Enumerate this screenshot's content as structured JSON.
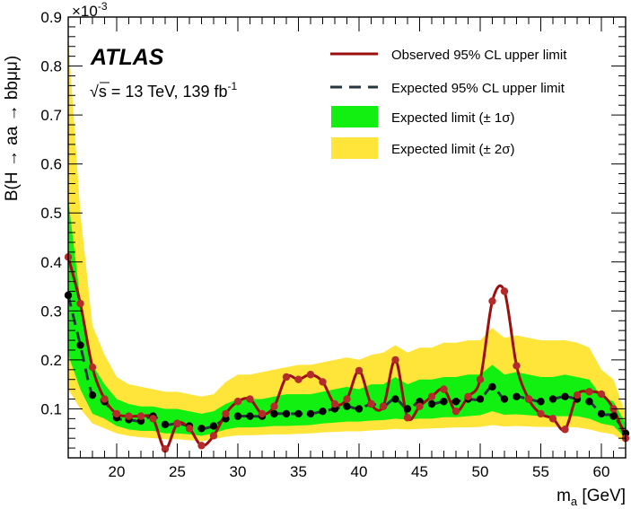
{
  "chart_data": {
    "type": "line",
    "ylabel": "B(H → aa → bbμμ)",
    "xlabel": "m_a [GeV]",
    "xlabel_main": "m",
    "xlabel_sub": "a",
    "xlabel_unit": " [GeV]",
    "y_exponent": "×10",
    "y_exponent_power": "-3",
    "xlim": [
      16,
      62
    ],
    "ylim": [
      0,
      0.9
    ],
    "x_ticks": [
      20,
      25,
      30,
      35,
      40,
      45,
      50,
      55,
      60
    ],
    "y_ticks": [
      0.1,
      0.2,
      0.3,
      0.4,
      0.5,
      0.6,
      0.7,
      0.8,
      0.9
    ],
    "experiment": "ATLAS",
    "energy_label": "s = 13 TeV, 139 fb",
    "energy_sqrt_prefix": "√",
    "lumi_power": "-1",
    "legend": {
      "placement": "top-right",
      "observed": "Observed 95% CL upper limit",
      "expected": "Expected 95% CL upper limit",
      "band1": "Expected limit (± 1σ)",
      "band2": "Expected limit (± 2σ)"
    },
    "colors": {
      "observed": "#9b0f0f",
      "expected": "#25363f",
      "band1": "#12f012",
      "band2": "#ffe53a"
    },
    "x": [
      16,
      17,
      18,
      19,
      20,
      21,
      22,
      23,
      24,
      25,
      26,
      27,
      28,
      29,
      30,
      31,
      32,
      33,
      34,
      35,
      36,
      37,
      38,
      39,
      40,
      41,
      42,
      43,
      44,
      45,
      46,
      47,
      48,
      49,
      50,
      51,
      52,
      53,
      54,
      55,
      56,
      57,
      58,
      59,
      60,
      61,
      62
    ],
    "observed": [
      0.41,
      0.315,
      0.185,
      0.12,
      0.09,
      0.085,
      0.085,
      0.08,
      0.018,
      0.07,
      0.06,
      0.025,
      0.045,
      0.09,
      0.115,
      0.12,
      0.09,
      0.105,
      0.165,
      0.16,
      0.17,
      0.155,
      0.11,
      0.12,
      0.178,
      0.11,
      0.105,
      0.2,
      0.082,
      0.105,
      0.125,
      0.14,
      0.095,
      0.125,
      0.16,
      0.32,
      0.34,
      0.188,
      0.12,
      0.09,
      0.08,
      0.058,
      0.128,
      0.135,
      0.13,
      0.1,
      0.04
    ],
    "expected": [
      0.332,
      0.23,
      0.128,
      0.115,
      0.082,
      0.078,
      0.075,
      0.085,
      0.068,
      0.07,
      0.065,
      0.06,
      0.065,
      0.08,
      0.085,
      0.085,
      0.085,
      0.09,
      0.09,
      0.09,
      0.09,
      0.095,
      0.1,
      0.105,
      0.1,
      0.11,
      0.105,
      0.12,
      0.1,
      0.115,
      0.11,
      0.115,
      0.115,
      0.12,
      0.12,
      0.145,
      0.12,
      0.125,
      0.12,
      0.115,
      0.12,
      0.125,
      0.12,
      0.115,
      0.09,
      0.085,
      0.05
    ],
    "band1_low": [
      0.21,
      0.14,
      0.09,
      0.08,
      0.065,
      0.058,
      0.055,
      0.055,
      0.05,
      0.05,
      0.048,
      0.045,
      0.05,
      0.058,
      0.062,
      0.062,
      0.063,
      0.065,
      0.065,
      0.066,
      0.067,
      0.07,
      0.072,
      0.074,
      0.074,
      0.076,
      0.077,
      0.08,
      0.078,
      0.08,
      0.08,
      0.083,
      0.083,
      0.085,
      0.087,
      0.095,
      0.088,
      0.089,
      0.087,
      0.085,
      0.085,
      0.085,
      0.085,
      0.08,
      0.07,
      0.065,
      0.04
    ],
    "band1_high": [
      0.53,
      0.32,
      0.19,
      0.15,
      0.12,
      0.11,
      0.105,
      0.105,
      0.1,
      0.1,
      0.095,
      0.09,
      0.095,
      0.11,
      0.12,
      0.12,
      0.12,
      0.125,
      0.13,
      0.13,
      0.13,
      0.135,
      0.14,
      0.145,
      0.14,
      0.15,
      0.15,
      0.165,
      0.15,
      0.16,
      0.16,
      0.165,
      0.165,
      0.17,
      0.17,
      0.19,
      0.17,
      0.175,
      0.17,
      0.165,
      0.165,
      0.17,
      0.165,
      0.16,
      0.125,
      0.115,
      0.07
    ],
    "band2_low": [
      0.14,
      0.1,
      0.07,
      0.06,
      0.05,
      0.045,
      0.042,
      0.04,
      0.038,
      0.038,
      0.036,
      0.034,
      0.038,
      0.043,
      0.046,
      0.046,
      0.047,
      0.048,
      0.048,
      0.049,
      0.05,
      0.052,
      0.053,
      0.054,
      0.054,
      0.056,
      0.057,
      0.059,
      0.058,
      0.059,
      0.06,
      0.061,
      0.062,
      0.062,
      0.063,
      0.067,
      0.064,
      0.065,
      0.064,
      0.063,
      0.063,
      0.063,
      0.062,
      0.058,
      0.052,
      0.048,
      0.03
    ],
    "band2_high": [
      0.86,
      0.5,
      0.27,
      0.21,
      0.165,
      0.15,
      0.145,
      0.14,
      0.135,
      0.135,
      0.13,
      0.125,
      0.13,
      0.155,
      0.17,
      0.17,
      0.175,
      0.18,
      0.185,
      0.19,
      0.19,
      0.195,
      0.2,
      0.205,
      0.2,
      0.21,
      0.215,
      0.23,
      0.215,
      0.225,
      0.225,
      0.235,
      0.235,
      0.24,
      0.24,
      0.265,
      0.245,
      0.25,
      0.245,
      0.24,
      0.24,
      0.24,
      0.235,
      0.225,
      0.18,
      0.16,
      0.09
    ]
  }
}
